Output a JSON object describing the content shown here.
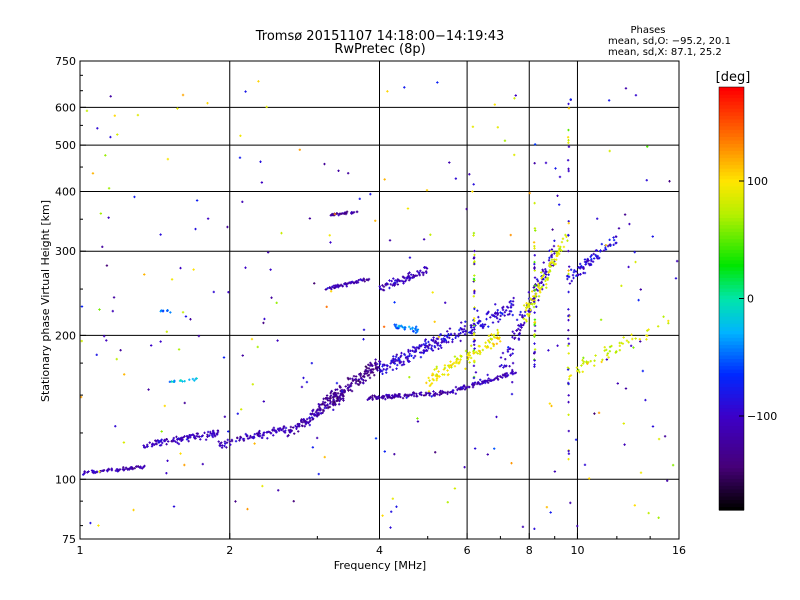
{
  "chart_data": {
    "type": "scatter",
    "title": "Tromsø 20151107 14:18:00−14:19:43",
    "subtitle": "RwPretec (8p)",
    "xlabel": "Frequency [MHz]",
    "ylabel": "Stationary phase Virtual Height [km]",
    "x_scale": "log",
    "y_scale": "log",
    "xlim": [
      1,
      16
    ],
    "ylim": [
      75,
      750
    ],
    "x_ticks": [
      "1",
      "2",
      "4",
      "6",
      "8",
      "10",
      "16"
    ],
    "x_tick_values": [
      1,
      2,
      4,
      6,
      8,
      10,
      16
    ],
    "y_ticks": [
      "750",
      "600",
      "500",
      "400",
      "300",
      "200",
      "100",
      "75"
    ],
    "y_tick_values": [
      750,
      600,
      500,
      400,
      300,
      200,
      100,
      75
    ],
    "grid": true,
    "phases_header": "Phases",
    "stats_o": "mean, sd,O: −95.2, 20.1",
    "stats_x": "mean, sd,X:  87.1, 25.2",
    "colorbar": {
      "label": "[deg]",
      "range": [
        -180,
        180
      ],
      "ticks": [
        "100",
        "0",
        "−100"
      ],
      "tick_values": [
        100,
        0,
        -100
      ]
    },
    "traces": [
      {
        "f0": 1.0,
        "f1": 1.35,
        "h0": 103,
        "h1": 106,
        "phase": -112,
        "spread": 0.012,
        "n": 70
      },
      {
        "f0": 1.35,
        "f1": 1.9,
        "h0": 118,
        "h1": 125,
        "phase": -105,
        "spread": 0.025,
        "n": 110
      },
      {
        "f0": 1.9,
        "f1": 2.6,
        "h0": 118,
        "h1": 128,
        "phase": -110,
        "spread": 0.03,
        "n": 90
      },
      {
        "f0": 2.6,
        "f1": 3.4,
        "h0": 125,
        "h1": 150,
        "phase": -115,
        "spread": 0.04,
        "n": 120
      },
      {
        "f0": 3.0,
        "f1": 4.0,
        "h0": 140,
        "h1": 175,
        "phase": -130,
        "spread": 0.05,
        "n": 160
      },
      {
        "f0": 3.8,
        "f1": 5.5,
        "h0": 148,
        "h1": 152,
        "phase": -118,
        "spread": 0.015,
        "n": 120
      },
      {
        "f0": 5.5,
        "f1": 7.6,
        "h0": 152,
        "h1": 168,
        "phase": -110,
        "spread": 0.02,
        "n": 90
      },
      {
        "f0": 3.1,
        "f1": 3.8,
        "h0": 250,
        "h1": 262,
        "phase": -112,
        "spread": 0.012,
        "n": 60
      },
      {
        "f0": 3.2,
        "f1": 3.6,
        "h0": 358,
        "h1": 362,
        "phase": -125,
        "spread": 0.008,
        "n": 35
      },
      {
        "f0": 4.0,
        "f1": 5.0,
        "h0": 250,
        "h1": 275,
        "phase": -108,
        "spread": 0.03,
        "n": 80
      },
      {
        "f0": 4.0,
        "f1": 7.5,
        "h0": 170,
        "h1": 230,
        "phase": -95,
        "spread": 0.06,
        "n": 260
      },
      {
        "f0": 5.0,
        "f1": 7.0,
        "h0": 160,
        "h1": 200,
        "phase": 95,
        "spread": 0.05,
        "n": 110
      },
      {
        "f0": 7.0,
        "f1": 9.0,
        "h0": 170,
        "h1": 300,
        "phase": -100,
        "spread": 0.08,
        "n": 120
      },
      {
        "f0": 7.8,
        "f1": 9.5,
        "h0": 220,
        "h1": 320,
        "phase": 90,
        "spread": 0.08,
        "n": 90
      },
      {
        "f0": 9.5,
        "f1": 12.0,
        "h0": 260,
        "h1": 320,
        "phase": -90,
        "spread": 0.05,
        "n": 80
      },
      {
        "f0": 9.5,
        "f1": 15.5,
        "h0": 165,
        "h1": 215,
        "phase": 85,
        "spread": 0.06,
        "n": 60
      },
      {
        "f0": 1.5,
        "f1": 1.75,
        "h0": 160,
        "h1": 162,
        "phase": -30,
        "spread": 0.01,
        "n": 14
      },
      {
        "f0": 1.45,
        "f1": 1.55,
        "h0": 225,
        "h1": 225,
        "phase": -40,
        "spread": 0.01,
        "n": 8
      },
      {
        "f0": 4.3,
        "f1": 4.8,
        "h0": 210,
        "h1": 205,
        "phase": -40,
        "spread": 0.02,
        "n": 30
      }
    ],
    "scatter_noise": {
      "n": 260,
      "f0": 1.0,
      "f1": 16,
      "h0": 78,
      "h1": 680
    },
    "vertical_streaks": [
      {
        "f": 8.2,
        "h0": 170,
        "h1": 340
      },
      {
        "f": 9.6,
        "h0": 110,
        "h1": 620
      },
      {
        "f": 6.2,
        "h0": 160,
        "h1": 330
      }
    ]
  }
}
